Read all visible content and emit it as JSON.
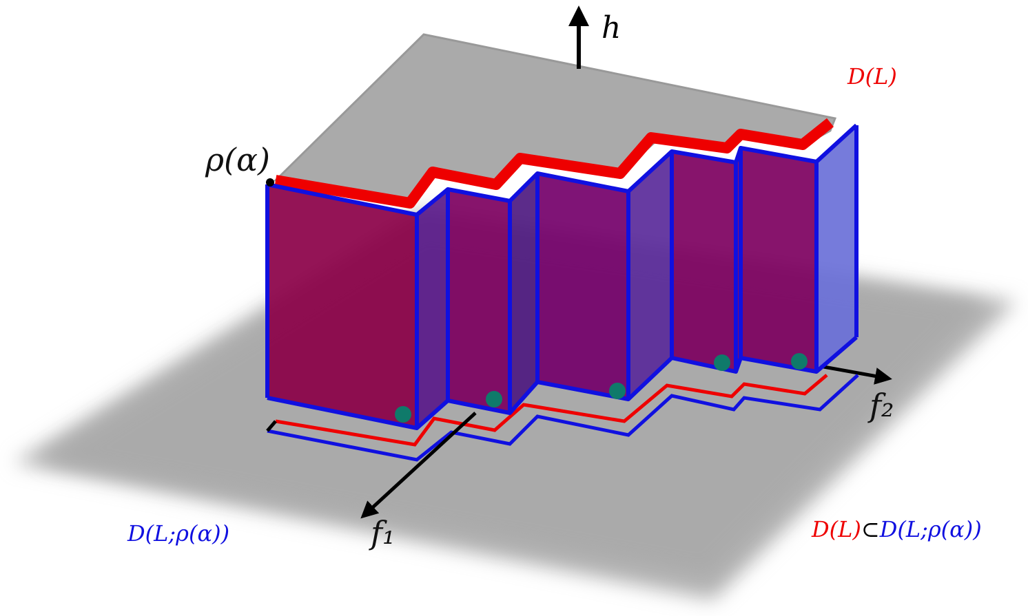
{
  "labels": {
    "h": "h",
    "rho_alpha": "ρ(α)",
    "f1": "f₁",
    "f2": "f₂",
    "D_L": "D(L)",
    "D_L_rho": "D(L;ρ(α))",
    "inclusion": [
      "D(L)",
      "⊂",
      "D(L;ρ(α))"
    ]
  }
}
